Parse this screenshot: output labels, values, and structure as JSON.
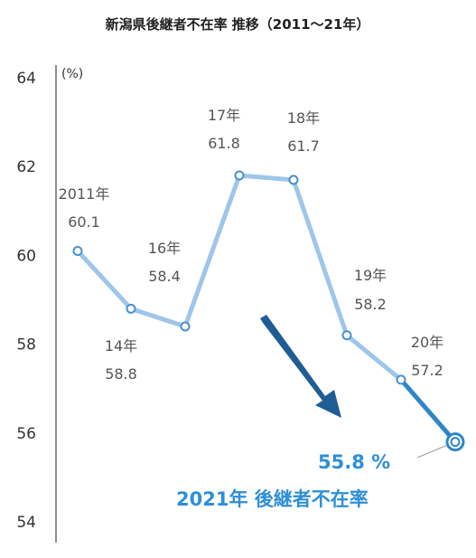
{
  "title": "新潟県後継者不在率 推移（2011〜21年）",
  "colors": {
    "line": "#9dc6ea",
    "line_dark": "#2e86c8",
    "marker": "#4a90cc",
    "arrow": "#1f5d94",
    "highlight_text": "#2e8fd6",
    "axis": "#444444"
  },
  "chart_data": {
    "type": "line",
    "title": "新潟県後継者不在率 推移（2011〜21年）",
    "ylabel": "(%)",
    "xlabel": "",
    "ylim": [
      54,
      64
    ],
    "yticks": [
      54,
      56,
      58,
      60,
      62,
      64
    ],
    "grid": false,
    "series": [
      {
        "x": [
          "2011年",
          "14年",
          "16年",
          "17年",
          "18年",
          "19年",
          "20年",
          "2021年"
        ],
        "values": [
          60.1,
          58.8,
          58.4,
          61.8,
          61.7,
          58.2,
          57.2,
          55.8
        ],
        "labels": [
          "60.1",
          "58.8",
          "58.4",
          "61.8",
          "61.7",
          "58.2",
          "57.2",
          "55.8 %"
        ]
      }
    ],
    "annotations": {
      "final_value": "55.8 %",
      "final_caption": "2021年 後継者不在率"
    }
  }
}
